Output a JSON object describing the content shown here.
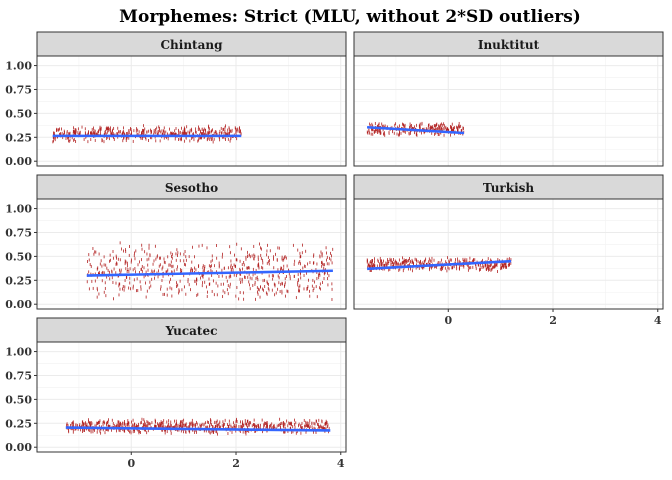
{
  "chart_data": {
    "type": "scatter",
    "title": "Morphemes: Strict (MLU, without 2*SD outliers)",
    "xlim": [
      -1.8,
      4.1
    ],
    "ylim": [
      -0.05,
      1.1
    ],
    "x_ticks": [
      0,
      2,
      4
    ],
    "y_ticks": [
      0.0,
      0.25,
      0.5,
      0.75,
      1.0
    ],
    "y_tick_labels": [
      "0.00",
      "0.25",
      "0.50",
      "0.75",
      "1.00"
    ],
    "x_tick_labels": [
      "0",
      "2",
      "4"
    ],
    "point_color": "#B22222",
    "fit_color": "#3366FF",
    "panel_background": "#ffffff",
    "grid_color": "#ebebeb",
    "strip_color": "#d9d9d9",
    "panels": [
      {
        "name": "Chintang",
        "x_range": [
          -1.5,
          2.1
        ],
        "y_center": 0.27,
        "y_spread": 0.09,
        "fit": [
          [
            -1.5,
            0.265
          ],
          [
            2.1,
            0.265
          ]
        ],
        "show_x_axis": false,
        "show_y_axis": true
      },
      {
        "name": "Inuktitut",
        "x_range": [
          -1.55,
          0.3
        ],
        "y_center": 0.32,
        "y_spread": 0.07,
        "fit": [
          [
            -1.55,
            0.355
          ],
          [
            0.3,
            0.295
          ]
        ],
        "show_x_axis": false,
        "show_y_axis": false
      },
      {
        "name": "Sesotho",
        "x_range": [
          -0.85,
          3.85
        ],
        "y_center": 0.32,
        "y_spread": 0.32,
        "fit": [
          [
            -0.85,
            0.3
          ],
          [
            3.85,
            0.35
          ]
        ],
        "show_x_axis": false,
        "show_y_axis": true
      },
      {
        "name": "Turkish",
        "x_range": [
          -1.55,
          1.2
        ],
        "y_center": 0.4,
        "y_spread": 0.08,
        "fit": [
          [
            -1.55,
            0.37
          ],
          [
            1.2,
            0.45
          ]
        ],
        "show_x_axis": true,
        "show_y_axis": false
      },
      {
        "name": "Yucatec",
        "x_range": [
          -1.25,
          3.8
        ],
        "y_center": 0.2,
        "y_spread": 0.08,
        "fit": [
          [
            -1.25,
            0.205
          ],
          [
            3.8,
            0.175
          ]
        ],
        "show_x_axis": true,
        "show_y_axis": true
      }
    ]
  }
}
